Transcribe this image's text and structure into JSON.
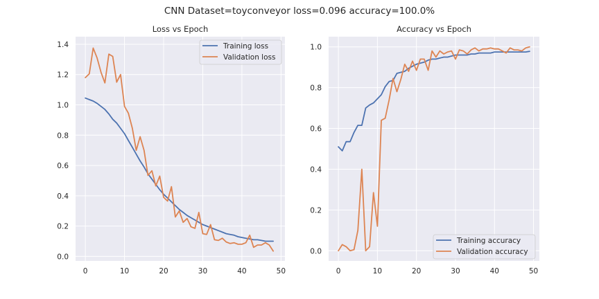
{
  "figure": {
    "title": "CNN Dataset=toyconveyor loss=0.096 accuracy=100.0%",
    "background": "#ffffff",
    "axes_background": "#eaeaf2",
    "grid_color": "#ffffff",
    "colors": {
      "training": "#4c72b0",
      "validation": "#dd8452"
    }
  },
  "chart_data": [
    {
      "type": "line",
      "title": "Loss vs Epoch",
      "xlabel": "",
      "ylabel": "",
      "xlim": [
        -2.5,
        51
      ],
      "ylim": [
        -0.03,
        1.45
      ],
      "x_ticks": [
        0,
        10,
        20,
        30,
        40,
        50
      ],
      "y_ticks": [
        0.0,
        0.2,
        0.4,
        0.6,
        0.8,
        1.0,
        1.2,
        1.4
      ],
      "y_tick_labels": [
        "0.0",
        "0.2",
        "0.4",
        "0.6",
        "0.8",
        "1.0",
        "1.2",
        "1.4"
      ],
      "grid": true,
      "legend_position": "upper right",
      "series": [
        {
          "name": "Training loss",
          "x": [
            0,
            1,
            2,
            3,
            4,
            5,
            6,
            7,
            8,
            9,
            10,
            11,
            12,
            13,
            14,
            15,
            16,
            17,
            18,
            19,
            20,
            21,
            22,
            23,
            24,
            25,
            26,
            27,
            28,
            29,
            30,
            31,
            32,
            33,
            34,
            35,
            36,
            37,
            38,
            39,
            40,
            41,
            42,
            43,
            44,
            45,
            46,
            47,
            48
          ],
          "values": [
            1.045,
            1.035,
            1.025,
            1.01,
            0.99,
            0.97,
            0.94,
            0.905,
            0.88,
            0.845,
            0.81,
            0.765,
            0.72,
            0.675,
            0.63,
            0.59,
            0.545,
            0.51,
            0.475,
            0.44,
            0.41,
            0.385,
            0.36,
            0.335,
            0.31,
            0.29,
            0.27,
            0.255,
            0.24,
            0.225,
            0.21,
            0.2,
            0.19,
            0.18,
            0.17,
            0.16,
            0.15,
            0.145,
            0.14,
            0.13,
            0.125,
            0.12,
            0.115,
            0.11,
            0.11,
            0.105,
            0.1,
            0.1,
            0.1
          ]
        },
        {
          "name": "Validation loss",
          "x": [
            0,
            1,
            2,
            3,
            4,
            5,
            6,
            7,
            8,
            9,
            10,
            11,
            12,
            13,
            14,
            15,
            16,
            17,
            18,
            19,
            20,
            21,
            22,
            23,
            24,
            25,
            26,
            27,
            28,
            29,
            30,
            31,
            32,
            33,
            34,
            35,
            36,
            37,
            38,
            39,
            40,
            41,
            42,
            43,
            44,
            45,
            46,
            47,
            48
          ],
          "values": [
            1.18,
            1.205,
            1.375,
            1.31,
            1.215,
            1.145,
            1.335,
            1.32,
            1.15,
            1.2,
            0.99,
            0.945,
            0.845,
            0.7,
            0.79,
            0.7,
            0.535,
            0.565,
            0.465,
            0.53,
            0.39,
            0.365,
            0.46,
            0.26,
            0.3,
            0.225,
            0.25,
            0.195,
            0.185,
            0.29,
            0.15,
            0.145,
            0.21,
            0.11,
            0.105,
            0.12,
            0.095,
            0.085,
            0.09,
            0.08,
            0.08,
            0.09,
            0.14,
            0.06,
            0.075,
            0.075,
            0.09,
            0.075,
            0.035
          ]
        }
      ]
    },
    {
      "type": "line",
      "title": "Accuracy vs Epoch",
      "xlabel": "",
      "ylabel": "",
      "xlim": [
        -2.5,
        51.5
      ],
      "ylim": [
        -0.05,
        1.05
      ],
      "x_ticks": [
        0,
        10,
        20,
        30,
        40,
        50
      ],
      "y_ticks": [
        0.0,
        0.2,
        0.4,
        0.6,
        0.8,
        1.0
      ],
      "y_tick_labels": [
        "0.0",
        "0.2",
        "0.4",
        "0.6",
        "0.8",
        "1.0"
      ],
      "grid": true,
      "legend_position": "lower right",
      "series": [
        {
          "name": "Training accuracy",
          "x": [
            0,
            1,
            2,
            3,
            4,
            5,
            6,
            7,
            8,
            9,
            10,
            11,
            12,
            13,
            14,
            15,
            16,
            17,
            18,
            19,
            20,
            21,
            22,
            23,
            24,
            25,
            26,
            27,
            28,
            29,
            30,
            31,
            32,
            33,
            34,
            35,
            36,
            37,
            38,
            39,
            40,
            41,
            42,
            43,
            44,
            45,
            46,
            47,
            48,
            49
          ],
          "values": [
            0.51,
            0.49,
            0.535,
            0.535,
            0.58,
            0.615,
            0.615,
            0.7,
            0.715,
            0.725,
            0.745,
            0.765,
            0.805,
            0.83,
            0.835,
            0.87,
            0.875,
            0.88,
            0.895,
            0.905,
            0.915,
            0.92,
            0.925,
            0.935,
            0.94,
            0.94,
            0.945,
            0.95,
            0.95,
            0.955,
            0.96,
            0.96,
            0.96,
            0.96,
            0.965,
            0.965,
            0.97,
            0.97,
            0.97,
            0.97,
            0.975,
            0.975,
            0.975,
            0.975,
            0.975,
            0.975,
            0.975,
            0.975,
            0.975,
            0.978
          ]
        },
        {
          "name": "Validation accuracy",
          "x": [
            0,
            1,
            2,
            3,
            4,
            5,
            6,
            7,
            8,
            9,
            10,
            11,
            12,
            13,
            14,
            15,
            16,
            17,
            18,
            19,
            20,
            21,
            22,
            23,
            24,
            25,
            26,
            27,
            28,
            29,
            30,
            31,
            32,
            33,
            34,
            35,
            36,
            37,
            38,
            39,
            40,
            41,
            42,
            43,
            44,
            45,
            46,
            47,
            48,
            49
          ],
          "values": [
            0.0,
            0.03,
            0.02,
            0.0,
            0.005,
            0.1,
            0.4,
            0.0,
            0.02,
            0.285,
            0.12,
            0.64,
            0.65,
            0.74,
            0.845,
            0.78,
            0.84,
            0.915,
            0.88,
            0.93,
            0.885,
            0.94,
            0.94,
            0.885,
            0.98,
            0.95,
            0.98,
            0.965,
            0.975,
            0.98,
            0.94,
            0.985,
            0.98,
            0.965,
            0.985,
            0.995,
            0.98,
            0.99,
            0.99,
            0.995,
            0.99,
            0.99,
            0.98,
            0.97,
            0.995,
            0.985,
            0.985,
            0.98,
            0.995,
            1.0
          ]
        }
      ]
    }
  ]
}
